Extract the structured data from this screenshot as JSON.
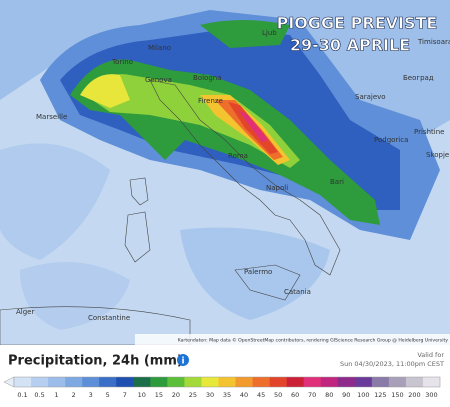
{
  "map": {
    "title_line1": "PIOGGE PREVISTE",
    "title_line2": "29-30 APRILE",
    "cities": [
      "Ljub",
      "Milano",
      "Torino",
      "Genova",
      "Bologna",
      "Firenze",
      "Roma",
      "Napoli",
      "Bari",
      "Marseille",
      "Sarajevo",
      "Podgorica",
      "Prishtine",
      "Skopje",
      "Београд",
      "Timisoara",
      "Palermo",
      "Catania",
      "Constantine",
      "Alger"
    ],
    "attribution": "Kartendaten: Map data © OpenStreetMap contributors, rendering GIScience Research Group @ Heidelberg University"
  },
  "legend": {
    "title": "Precipitation, 24h (mm)",
    "valid_label": "Valid for",
    "valid_time": "Sun 04/30/2023, 11:00pm CEST",
    "stops": [
      {
        "value": 0.1,
        "color": "#d3e3f5"
      },
      {
        "value": 0.5,
        "color": "#b6cff0"
      },
      {
        "value": 1,
        "color": "#9cbde9"
      },
      {
        "value": 2,
        "color": "#7ea8e2"
      },
      {
        "value": 3,
        "color": "#5d8fd8"
      },
      {
        "value": 5,
        "color": "#3a6fc7"
      },
      {
        "value": 7,
        "color": "#1f4fb0"
      },
      {
        "value": 10,
        "color": "#1a6e4a"
      },
      {
        "value": 15,
        "color": "#2d9a3c"
      },
      {
        "value": 20,
        "color": "#5cbf3a"
      },
      {
        "value": 25,
        "color": "#a4d93a"
      },
      {
        "value": 30,
        "color": "#e6e83a"
      },
      {
        "value": 35,
        "color": "#f4c430"
      },
      {
        "value": 40,
        "color": "#f29a2e"
      },
      {
        "value": 45,
        "color": "#ee6e2c"
      },
      {
        "value": 50,
        "color": "#e3452a"
      },
      {
        "value": 60,
        "color": "#cc2036"
      },
      {
        "value": 70,
        "color": "#e0307a"
      },
      {
        "value": 80,
        "color": "#c0267e"
      },
      {
        "value": 90,
        "color": "#8e2a8c"
      },
      {
        "value": 100,
        "color": "#6a3a9a"
      },
      {
        "value": 125,
        "color": "#8a7aa8"
      },
      {
        "value": 150,
        "color": "#a8a0b8"
      },
      {
        "value": 200,
        "color": "#c8c4d0"
      },
      {
        "value": 300,
        "color": "#e6e4ea"
      }
    ]
  }
}
